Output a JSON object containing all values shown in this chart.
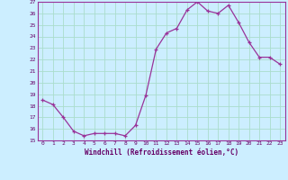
{
  "x": [
    0,
    1,
    2,
    3,
    4,
    5,
    6,
    7,
    8,
    9,
    10,
    11,
    12,
    13,
    14,
    15,
    16,
    17,
    18,
    19,
    20,
    21,
    22,
    23
  ],
  "y": [
    18.5,
    18.1,
    17.0,
    15.8,
    15.4,
    15.6,
    15.6,
    15.6,
    15.4,
    16.3,
    18.9,
    22.9,
    24.3,
    24.7,
    26.3,
    27.0,
    26.2,
    26.0,
    26.7,
    25.2,
    23.5,
    22.2,
    22.2,
    21.6
  ],
  "ylim": [
    15,
    27
  ],
  "yticks": [
    15,
    16,
    17,
    18,
    19,
    20,
    21,
    22,
    23,
    24,
    25,
    26,
    27
  ],
  "xticks": [
    0,
    1,
    2,
    3,
    4,
    5,
    6,
    7,
    8,
    9,
    10,
    11,
    12,
    13,
    14,
    15,
    16,
    17,
    18,
    19,
    20,
    21,
    22,
    23
  ],
  "xlabel": "Windchill (Refroidissement éolien,°C)",
  "line_color": "#993399",
  "marker": "+",
  "bg_color": "#cceeff",
  "grid_color": "#aaddcc",
  "text_color": "#660066",
  "axis_color": "#993399"
}
